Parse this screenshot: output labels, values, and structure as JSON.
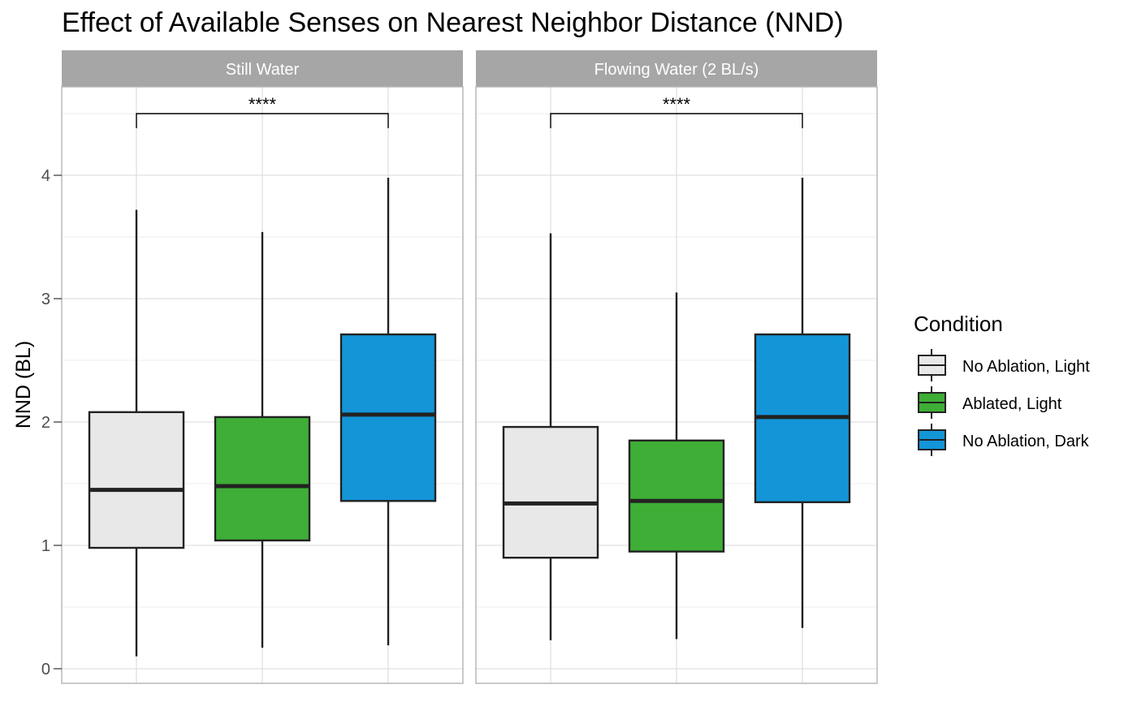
{
  "chart_data": {
    "type": "boxplot",
    "title": "Effect of Available Senses on Nearest Neighbor Distance (NND)",
    "ylabel": "NND (BL)",
    "xlabel": "",
    "ylim": [
      -0.1,
      4.72
    ],
    "yticks": [
      "0",
      "1",
      "2",
      "3",
      "4"
    ],
    "ytick_values": [
      0,
      1,
      2,
      3,
      4
    ],
    "grid": true,
    "legend": {
      "title": "Condition",
      "position": "right",
      "entries": [
        "No Ablation, Light",
        "Ablated, Light",
        "No Ablation, Dark"
      ]
    },
    "colors": {
      "No Ablation, Light": "#e8e8e8",
      "Ablated, Light": "#3eae36",
      "No Ablation, Dark": "#1395d8",
      "strip": "#a6a6a6",
      "box_outline": "#222222",
      "grid": "#e0e0e0",
      "panel_border": "#b3b3b3"
    },
    "facets": [
      {
        "label": "Still Water",
        "significance": "****",
        "significance_between": [
          "No Ablation, Light",
          "No Ablation, Dark"
        ],
        "significance_y": 4.5,
        "boxes": [
          {
            "condition": "No Ablation, Light",
            "whisker_low": 0.1,
            "q1": 0.98,
            "median": 1.45,
            "q3": 2.08,
            "whisker_high": 3.72
          },
          {
            "condition": "Ablated, Light",
            "whisker_low": 0.17,
            "q1": 1.04,
            "median": 1.48,
            "q3": 2.04,
            "whisker_high": 3.54
          },
          {
            "condition": "No Ablation, Dark",
            "whisker_low": 0.19,
            "q1": 1.36,
            "median": 2.06,
            "q3": 2.71,
            "whisker_high": 3.98
          }
        ]
      },
      {
        "label": "Flowing Water (2 BL/s)",
        "significance": "****",
        "significance_between": [
          "No Ablation, Light",
          "No Ablation, Dark"
        ],
        "significance_y": 4.5,
        "boxes": [
          {
            "condition": "No Ablation, Light",
            "whisker_low": 0.23,
            "q1": 0.9,
            "median": 1.34,
            "q3": 1.96,
            "whisker_high": 3.53
          },
          {
            "condition": "Ablated, Light",
            "whisker_low": 0.24,
            "q1": 0.95,
            "median": 1.36,
            "q3": 1.85,
            "whisker_high": 3.05
          },
          {
            "condition": "No Ablation, Dark",
            "whisker_low": 0.33,
            "q1": 1.35,
            "median": 2.04,
            "q3": 2.71,
            "whisker_high": 3.98
          }
        ]
      }
    ]
  }
}
